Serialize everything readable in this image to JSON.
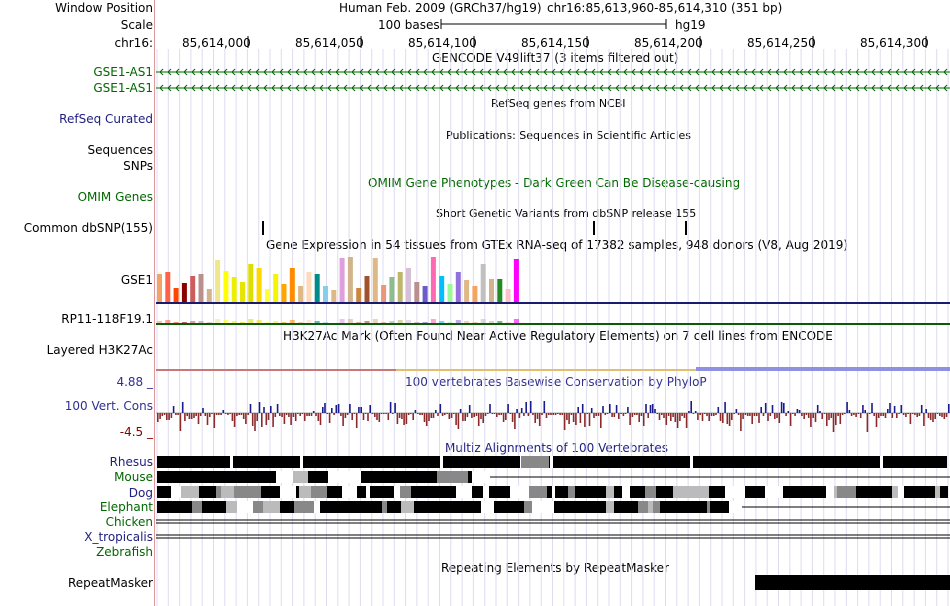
{
  "header": {
    "window_position_label": "Window Position",
    "assembly": "Human Feb. 2009 (GRCh37/hg19)",
    "position": "chr16:85,613,960-85,614,310 (351 bp)",
    "scale_label": "Scale",
    "scale_bar_text": "100 bases",
    "scale_db": "hg19",
    "chrom_label": "chr16:",
    "ruler_ticks": [
      "85,614,000",
      "85,614,050",
      "85,614,100",
      "85,614,150",
      "85,614,200",
      "85,614,250",
      "85,614,300"
    ]
  },
  "tracks": {
    "gencode": {
      "title": "GENCODE V49lift37 (3 items filtered out)",
      "items": [
        "GSE1-AS1",
        "GSE1-AS1"
      ]
    },
    "refseq": {
      "title": "RefSeq genes from NCBI",
      "label": "RefSeq Curated"
    },
    "publications": {
      "title": "Publications: Sequences in Scientific Articles",
      "label1": "Sequences",
      "label2": "SNPs"
    },
    "omim": {
      "title": "OMIM Gene Phenotypes - Dark Green Can Be Disease-causing",
      "label": "OMIM Genes"
    },
    "dbsnp": {
      "title": "Short Genetic Variants from dbSNP release 155",
      "label": "Common dbSNP(155)"
    },
    "gtex": {
      "title": "Gene Expression in 54 tissues from GTEx RNA-seq of 17382 samples, 948 donors (V8, Aug 2019)",
      "genes": [
        "GSE1",
        "RP11-118F19.1"
      ]
    },
    "h3k27ac": {
      "title": "H3K27Ac Mark (Often Found Near Active Regulatory Elements) on 7 cell lines from ENCODE",
      "label": "Layered H3K27Ac"
    },
    "phylop": {
      "title": "100 vertebrates Basewise Conservation by PhyloP",
      "label": "100 Vert. Cons",
      "ymax": "4.88 _",
      "ymin": "-4.5 _"
    },
    "multiz": {
      "title": "Multiz Alignments of 100 Vertebrates",
      "species": [
        "Rhesus",
        "Mouse",
        "Dog",
        "Elephant",
        "Chicken",
        "X_tropicalis",
        "Zebrafish"
      ]
    },
    "repeatmasker": {
      "title": "Repeating Elements by RepeatMasker",
      "label": "RepeatMasker"
    }
  },
  "colors": {
    "gene_green": "#006600",
    "label_navy": "#202080",
    "phylop_pos": "#1a1a8c",
    "phylop_neg": "#8b2a2a",
    "gtex_gse1_line": "#1a1a6e",
    "gtex_rp11_line": "#0a5a0a"
  }
}
